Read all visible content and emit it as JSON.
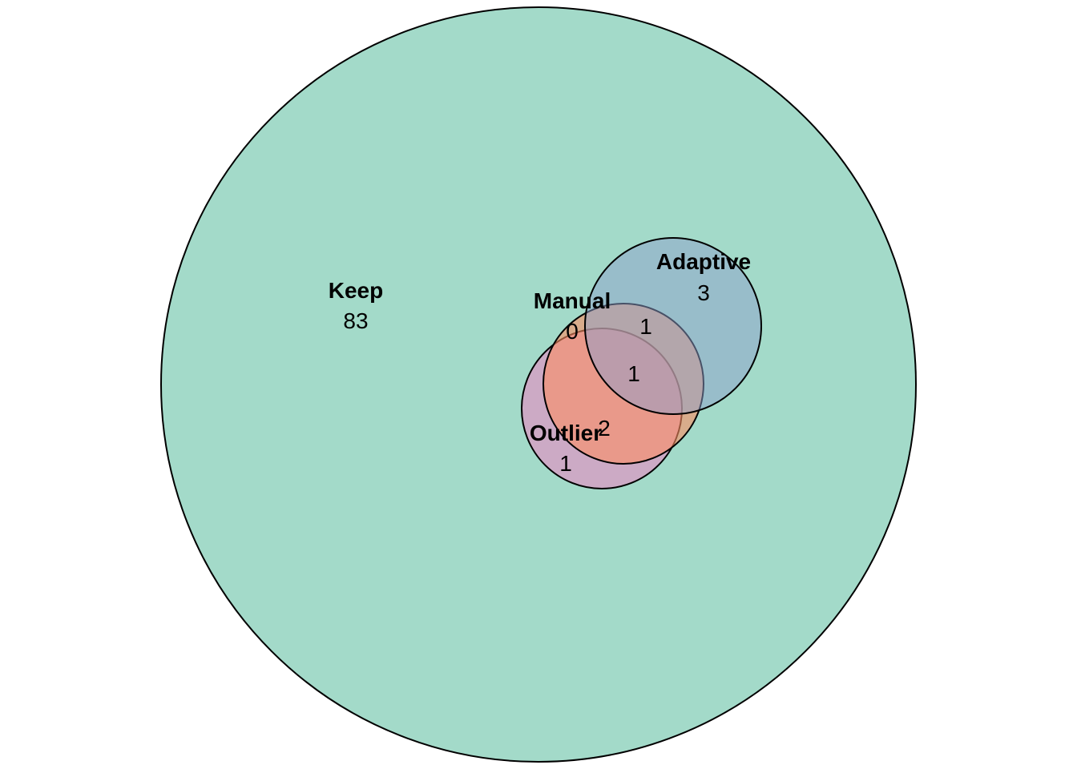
{
  "sets": {
    "keep": {
      "name": "Keep",
      "color": "#66C2A5",
      "opacity": 0.6
    },
    "manual": {
      "name": "Manual",
      "color": "#FC8D62",
      "opacity": 0.6
    },
    "adaptive": {
      "name": "Adaptive",
      "color": "#8DA0CB",
      "opacity": 0.5
    },
    "outlier": {
      "name": "Outlier",
      "color": "#E78AC3",
      "opacity": 0.6
    }
  },
  "regions": {
    "keep_only": "83",
    "adaptive_only": "3",
    "manual_only": "0",
    "manual_adaptive": "1",
    "manual_adaptive_outlier": "1",
    "manual_outlier": "2",
    "outlier_only": "1"
  }
}
